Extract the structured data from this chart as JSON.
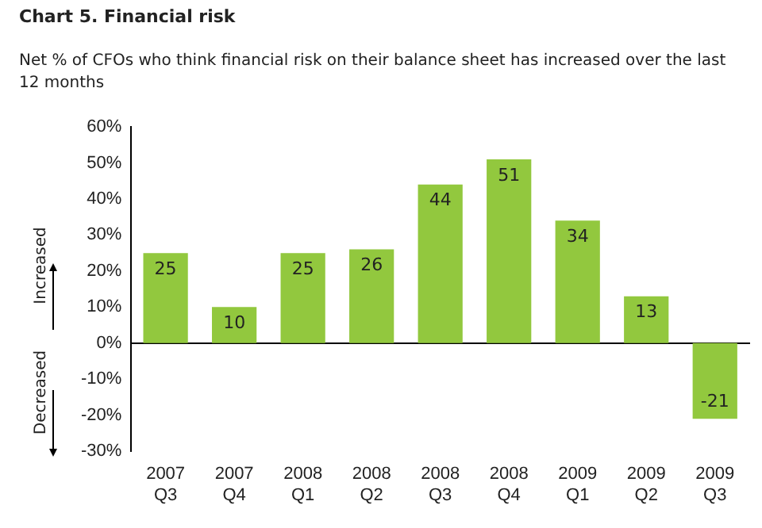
{
  "chart_data": {
    "type": "bar",
    "title": "Chart 5. Financial risk",
    "subtitle": "Net % of CFOs who think financial risk on their balance sheet has increased over the last 12 months",
    "categories": [
      "2007\nQ3",
      "2007\nQ4",
      "2008\nQ1",
      "2008\nQ2",
      "2008\nQ3",
      "2008\nQ4",
      "2009\nQ1",
      "2009\nQ2",
      "2009\nQ3"
    ],
    "values": [
      25,
      10,
      25,
      26,
      44,
      51,
      34,
      13,
      -21
    ],
    "color": "#92c83e",
    "ylim": [
      -30,
      60
    ],
    "yticks": [
      {
        "value": -30,
        "label": "-30%"
      },
      {
        "value": -20,
        "label": "-20%"
      },
      {
        "value": -10,
        "label": "-10%"
      },
      {
        "value": 0,
        "label": "0%"
      },
      {
        "value": 10,
        "label": "10%"
      },
      {
        "value": 20,
        "label": "20%"
      },
      {
        "value": 30,
        "label": "30%"
      },
      {
        "value": 40,
        "label": "40%"
      },
      {
        "value": 50,
        "label": "50%"
      },
      {
        "value": 60,
        "label": "60%"
      }
    ],
    "annotations": [
      "Increased",
      "Decreased"
    ],
    "data_labels": true,
    "legend": false
  }
}
